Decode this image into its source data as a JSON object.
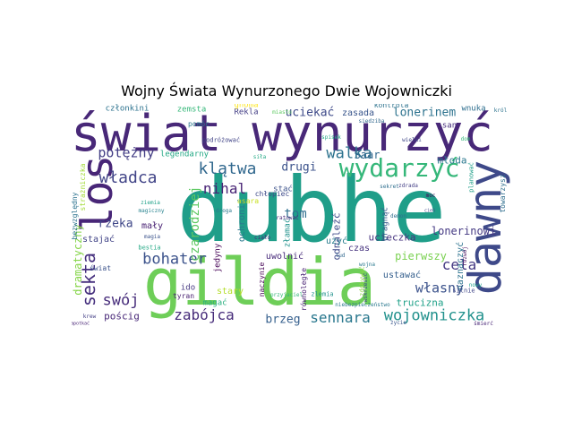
{
  "title": "Wojny Świata Wynurzonego Dwie Wojowniczki",
  "words": [
    {
      "text": "dubhe",
      "color": "#1f9e89"
    },
    {
      "text": "świat wynurzyć",
      "color": "#482878"
    },
    {
      "text": "gildia",
      "color": "#6ece58"
    },
    {
      "text": "dawny",
      "color": "#3e4989"
    },
    {
      "text": "los",
      "color": "#482677"
    },
    {
      "text": "wydarzyć",
      "color": "#35b779"
    },
    {
      "text": "wojowniczka",
      "color": "#21918c"
    },
    {
      "text": "sennara",
      "color": "#2a788e"
    },
    {
      "text": "zabójca",
      "color": "#472c7a"
    },
    {
      "text": "bohater",
      "color": "#3b528b"
    },
    {
      "text": "klątwa",
      "color": "#31688e"
    },
    {
      "text": "walka",
      "color": "#2c728e"
    },
    {
      "text": "potężny",
      "color": "#433e85"
    },
    {
      "text": "władca",
      "color": "#414487"
    },
    {
      "text": "nihal",
      "color": "#482475"
    },
    {
      "text": "sekta",
      "color": "#46307e"
    },
    {
      "text": "cela",
      "color": "#443983"
    },
    {
      "text": "własny",
      "color": "#3b528b"
    },
    {
      "text": "swój",
      "color": "#472d7b"
    },
    {
      "text": "rzeka",
      "color": "#3f4788"
    },
    {
      "text": "tom",
      "color": "#2e6e8e"
    },
    {
      "text": "uciekać",
      "color": "#3e4a89"
    },
    {
      "text": "lonerinem",
      "color": "#2c728e"
    },
    {
      "text": "czarodziej",
      "color": "#5ec962"
    },
    {
      "text": "pierwszy",
      "color": "#7ad151"
    },
    {
      "text": "brzeg",
      "color": "#355f8d"
    },
    {
      "text": "Saar",
      "color": "#31688e"
    },
    {
      "text": "młoda",
      "color": "#2a788e"
    },
    {
      "text": "drugi",
      "color": "#3b528b"
    },
    {
      "text": "ucieczka",
      "color": "#46337f"
    },
    {
      "text": "mały",
      "color": "#482173"
    },
    {
      "text": "uwolnić",
      "color": "#472a7a"
    },
    {
      "text": "lonerinowi",
      "color": "#443983"
    },
    {
      "text": "dramatyczny",
      "color": "#86d549"
    },
    {
      "text": "pościg",
      "color": "#482878"
    },
    {
      "text": "członkini",
      "color": "#2c728e"
    },
    {
      "text": "zemsta",
      "color": "#35b779"
    },
    {
      "text": "Rekla",
      "color": "#433e85"
    },
    {
      "text": "zasada",
      "color": "#39568c"
    },
    {
      "text": "wnuka",
      "color": "#2e6e8e"
    },
    {
      "text": "stary",
      "color": "#b5de2b"
    },
    {
      "text": "legendarny",
      "color": "#22a884"
    },
    {
      "text": "pomóc",
      "color": "#2a788e"
    },
    {
      "text": "jedyny",
      "color": "#440154"
    },
    {
      "text": "magać",
      "color": "#29af7f"
    },
    {
      "text": "ustawać",
      "color": "#355f8d"
    },
    {
      "text": "trucizna",
      "color": "#1fa188"
    },
    {
      "text": "naznaczyć",
      "color": "#2c728e"
    },
    {
      "text": "odnaleźć",
      "color": "#3e4989"
    },
    {
      "text": "ochronić",
      "color": "#2a788e"
    },
    {
      "text": "czas",
      "color": "#46337f"
    },
    {
      "text": "użyć",
      "color": "#287d8e"
    },
    {
      "text": "stać",
      "color": "#3b528b"
    },
    {
      "text": "stajać",
      "color": "#414487"
    },
    {
      "text": "ido",
      "color": "#453781"
    },
    {
      "text": "tyran",
      "color": "#481f70"
    },
    {
      "text": "strażniczka",
      "color": "#a2da37"
    },
    {
      "text": "bezwzględny",
      "color": "#2c728e"
    },
    {
      "text": "san",
      "color": "#472f7d"
    },
    {
      "text": "gnoma",
      "color": "#fde725"
    },
    {
      "text": "złamać",
      "color": "#20928c"
    },
    {
      "text": "pragnąć",
      "color": "#38598c"
    },
    {
      "text": "towarzysz",
      "color": "#2e6e8e"
    },
    {
      "text": "świat",
      "color": "#3b528b"
    },
    {
      "text": "równoległe",
      "color": "#482173"
    },
    {
      "text": "naczynie",
      "color": "#440154"
    },
    {
      "text": "chłopiec",
      "color": "#3e4a89"
    },
    {
      "text": "asara",
      "color": "#c8e020"
    },
    {
      "text": "kontrola",
      "color": "#2c728e"
    },
    {
      "text": "planować",
      "color": "#1f9e89"
    },
    {
      "text": "silnie",
      "color": "#404688"
    },
    {
      "text": "podróżować",
      "color": "#414487"
    },
    {
      "text": "bestia",
      "color": "#22a884"
    },
    {
      "text": "zdobywać",
      "color": "#8fd744"
    },
    {
      "text": "zlemia",
      "color": "#21918c"
    },
    {
      "text": "rozwój",
      "color": "#46085c"
    },
    {
      "text": "demon",
      "color": "#2e6e8e"
    },
    {
      "text": "siedziba",
      "color": "#31688e"
    },
    {
      "text": "magiczny",
      "color": "#26828e"
    },
    {
      "text": "moc",
      "color": "#440154"
    },
    {
      "text": "wskrzesić",
      "color": "#3e4989"
    },
    {
      "text": "przyjaciel",
      "color": "#35b779"
    },
    {
      "text": "niebezpieczeństwo",
      "color": "#2a788e"
    },
    {
      "text": "napotkać",
      "color": "#482475"
    },
    {
      "text": "spisek",
      "color": "#22a884"
    },
    {
      "text": "ratować",
      "color": "#482878"
    },
    {
      "text": "wielki",
      "color": "#3f4788"
    },
    {
      "text": "nowy",
      "color": "#1f9e89"
    },
    {
      "text": "sekret",
      "color": "#2e6e8e"
    },
    {
      "text": "wojna",
      "color": "#2a788e"
    },
    {
      "text": "król",
      "color": "#2c728e"
    },
    {
      "text": "zdrada",
      "color": "#433e85"
    },
    {
      "text": "magia",
      "color": "#3b528b"
    },
    {
      "text": "ziemia",
      "color": "#1fa188"
    },
    {
      "text": "miasto",
      "color": "#5ec962"
    },
    {
      "text": "lud",
      "color": "#31688e"
    },
    {
      "text": "ciało",
      "color": "#482878"
    },
    {
      "text": "śmierć",
      "color": "#482677"
    },
    {
      "text": "cień",
      "color": "#3e4989"
    },
    {
      "text": "droga",
      "color": "#2a788e"
    },
    {
      "text": "siła",
      "color": "#22a884"
    },
    {
      "text": "dom",
      "color": "#35b779"
    },
    {
      "text": "krew",
      "color": "#433e85"
    },
    {
      "text": "życie",
      "color": "#39568c"
    }
  ]
}
